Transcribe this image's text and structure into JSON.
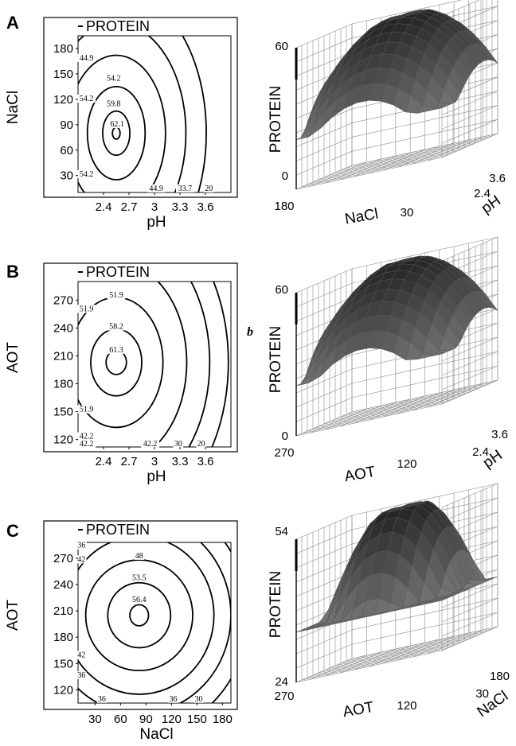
{
  "chart_data": [
    {
      "id": "A-contour",
      "panel_label": "A",
      "type": "contour",
      "legend": "PROTEIN",
      "xlabel": "pH",
      "ylabel": "NaCl",
      "x_ticks": [
        "2.4",
        "2.7",
        "3",
        "3.3",
        "3.6"
      ],
      "y_ticks": [
        "180",
        "150",
        "120",
        "90",
        "60",
        "30"
      ],
      "xlim": [
        2.1,
        3.9
      ],
      "ylim": [
        10,
        195
      ],
      "center": {
        "x": 2.55,
        "y": 80
      },
      "contours": [
        {
          "level": "62.1",
          "rx": 0.045,
          "ry": 7
        },
        {
          "level": "59.8",
          "rx": 0.16,
          "ry": 26
        },
        {
          "level": "54.2",
          "rx": 0.34,
          "ry": 55
        },
        {
          "level": "44.9",
          "rx": 0.58,
          "ry": 92
        },
        {
          "level": "33.7",
          "rx": 0.82,
          "ry": 130
        },
        {
          "level": "20",
          "rx": 1.06,
          "ry": 170
        }
      ],
      "labels": [
        {
          "text": "62.1",
          "x": 2.56,
          "y": 88
        },
        {
          "text": "59.8",
          "x": 2.52,
          "y": 112
        },
        {
          "text": "54.2",
          "x": 2.52,
          "y": 142
        },
        {
          "text": "44.9",
          "x": 2.2,
          "y": 166
        },
        {
          "text": "54.2",
          "x": 2.2,
          "y": 118
        },
        {
          "text": "54.2",
          "x": 2.2,
          "y": 29
        },
        {
          "text": "44.9",
          "x": 3.02,
          "y": 12
        },
        {
          "text": "33.7",
          "x": 3.36,
          "y": 12
        },
        {
          "text": "20",
          "x": 3.64,
          "y": 12
        }
      ]
    },
    {
      "id": "A-surface",
      "type": "surface3d",
      "zlabel": "PROTEIN",
      "z_ticks": [
        "60",
        "0"
      ],
      "x_axis_label": "NaCl",
      "x_ticks": [
        "180",
        "30"
      ],
      "y_axis_label": "pH",
      "y_ticks": [
        "3.6",
        "2.4"
      ],
      "zlim": [
        0,
        60
      ],
      "peak": 62.1
    },
    {
      "id": "B-contour",
      "panel_label": "B",
      "type": "contour",
      "legend": "PROTEIN",
      "xlabel": "pH",
      "ylabel": "AOT",
      "x_ticks": [
        "2.4",
        "2.7",
        "3",
        "3.3",
        "3.6"
      ],
      "y_ticks": [
        "270",
        "240",
        "210",
        "180",
        "150",
        "120"
      ],
      "xlim": [
        2.1,
        3.9
      ],
      "ylim": [
        112,
        290
      ],
      "center": {
        "x": 2.55,
        "y": 203
      },
      "contours": [
        {
          "level": "61.3",
          "rx": 0.12,
          "ry": 13
        },
        {
          "level": "58.2",
          "rx": 0.3,
          "ry": 36
        },
        {
          "level": "51.9",
          "rx": 0.55,
          "ry": 70
        },
        {
          "level": "42.2",
          "rx": 0.83,
          "ry": 108
        },
        {
          "level": "30",
          "rx": 1.1,
          "ry": 145
        },
        {
          "level": "20",
          "rx": 1.32,
          "ry": 175
        }
      ],
      "labels": [
        {
          "text": "61.3",
          "x": 2.55,
          "y": 214
        },
        {
          "text": "58.2",
          "x": 2.55,
          "y": 239
        },
        {
          "text": "51.9",
          "x": 2.55,
          "y": 273
        },
        {
          "text": "51.9",
          "x": 2.2,
          "y": 258
        },
        {
          "text": "51.9",
          "x": 2.2,
          "y": 150
        },
        {
          "text": "42.2",
          "x": 2.2,
          "y": 121
        },
        {
          "text": "42.2",
          "x": 2.2,
          "y": 113
        },
        {
          "text": "42.2",
          "x": 2.95,
          "y": 113
        },
        {
          "text": "30",
          "x": 3.28,
          "y": 113
        },
        {
          "text": "20",
          "x": 3.55,
          "y": 113
        }
      ]
    },
    {
      "id": "B-surface",
      "type": "surface3d",
      "zlabel": "PROTEIN",
      "z_ticks": [
        "60",
        "0"
      ],
      "x_axis_label": "AOT",
      "x_ticks": [
        "270",
        "120"
      ],
      "y_axis_label": "pH",
      "y_ticks": [
        "3.6",
        "2.4"
      ],
      "zlim": [
        0,
        60
      ],
      "peak": 61.3,
      "side_mark": "b"
    },
    {
      "id": "C-contour",
      "panel_label": "C",
      "type": "contour",
      "legend": "PROTEIN",
      "xlabel": "NaCl",
      "ylabel": "AOT",
      "x_ticks": [
        "30",
        "60",
        "90",
        "120",
        "150",
        "180"
      ],
      "y_ticks": [
        "270",
        "240",
        "210",
        "180",
        "150",
        "120"
      ],
      "xlim": [
        10,
        190
      ],
      "ylim": [
        105,
        288
      ],
      "center": {
        "x": 82,
        "y": 205
      },
      "contours": [
        {
          "level": "56.4",
          "rx": 11,
          "ry": 12
        },
        {
          "level": "53.5",
          "rx": 37,
          "ry": 37
        },
        {
          "level": "48",
          "rx": 63,
          "ry": 63
        },
        {
          "level": "42",
          "rx": 88,
          "ry": 90
        },
        {
          "level": "36",
          "rx": 108,
          "ry": 112
        },
        {
          "level": "30",
          "rx": 128,
          "ry": 135
        }
      ],
      "labels": [
        {
          "text": "56.4",
          "x": 82,
          "y": 220
        },
        {
          "text": "53.5",
          "x": 82,
          "y": 245
        },
        {
          "text": "48",
          "x": 82,
          "y": 270
        },
        {
          "text": "36",
          "x": 14,
          "y": 282
        },
        {
          "text": "42",
          "x": 14,
          "y": 266
        },
        {
          "text": "42",
          "x": 14,
          "y": 157
        },
        {
          "text": "36",
          "x": 14,
          "y": 134
        },
        {
          "text": "36",
          "x": 38,
          "y": 107
        },
        {
          "text": "36",
          "x": 122,
          "y": 107
        },
        {
          "text": "30",
          "x": 152,
          "y": 107
        }
      ]
    },
    {
      "id": "C-surface",
      "type": "surface3d",
      "zlabel": "PROTEIN",
      "z_ticks": [
        "54",
        "24"
      ],
      "x_axis_label": "AOT",
      "x_ticks": [
        "270",
        "120"
      ],
      "y_axis_label": "NaCl",
      "y_ticks": [
        "180",
        "30"
      ],
      "zlim": [
        24,
        54
      ],
      "peak": 56.4
    }
  ],
  "colors": {
    "line": "#000000",
    "surface_dark": "#1a1a1a",
    "surface_light": "#9a9a9a",
    "grid": "#8c8c8c"
  }
}
